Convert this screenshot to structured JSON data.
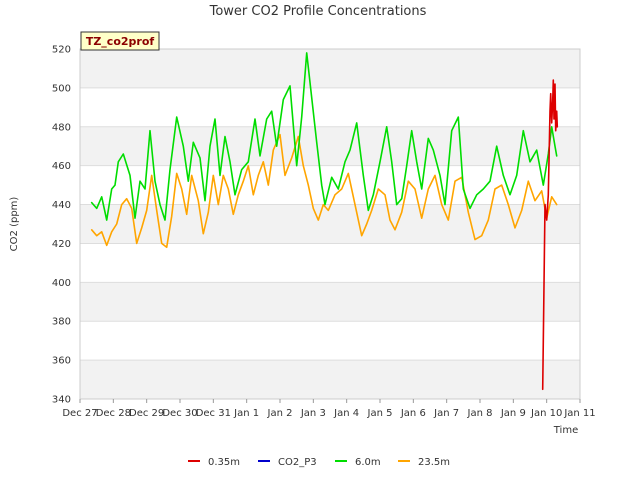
{
  "chart_data": {
    "type": "line",
    "title": "Tower CO2 Profile Concentrations",
    "xlabel": "Time",
    "ylabel": "CO2 (ppm)",
    "site_tag": "TZ_co2prof",
    "ylim": [
      340,
      520
    ],
    "yticks": [
      340,
      360,
      380,
      400,
      420,
      440,
      460,
      480,
      500,
      520
    ],
    "xlim": [
      0,
      15
    ],
    "xticks": [
      {
        "x": 0,
        "label": "Dec 27"
      },
      {
        "x": 1,
        "label": "Dec 28"
      },
      {
        "x": 2,
        "label": "Dec 29"
      },
      {
        "x": 3,
        "label": "Dec 30"
      },
      {
        "x": 4,
        "label": "Dec 31"
      },
      {
        "x": 5,
        "label": "Jan 1"
      },
      {
        "x": 6,
        "label": "Jan 2"
      },
      {
        "x": 7,
        "label": "Jan 3"
      },
      {
        "x": 8,
        "label": "Jan 4"
      },
      {
        "x": 9,
        "label": "Jan 5"
      },
      {
        "x": 10,
        "label": "Jan 6"
      },
      {
        "x": 11,
        "label": "Jan 7"
      },
      {
        "x": 12,
        "label": "Jan 8"
      },
      {
        "x": 13,
        "label": "Jan 9"
      },
      {
        "x": 14,
        "label": "Jan 10"
      },
      {
        "x": 15,
        "label": "Jan 11"
      }
    ],
    "series": [
      {
        "name": "0.35m",
        "color": "#dd0000",
        "x": [
          13.88,
          13.95,
          14.0,
          14.05,
          14.1,
          14.12,
          14.15,
          14.18,
          14.2,
          14.22,
          14.25,
          14.27,
          14.3,
          14.32
        ],
        "y": [
          345,
          440,
          432,
          445,
          488,
          497,
          482,
          493,
          504,
          484,
          502,
          478,
          488,
          480
        ]
      },
      {
        "name": "CO2_P3",
        "color": "#0000cc",
        "x": [],
        "y": []
      },
      {
        "name": "6.0m",
        "color": "#00dd00",
        "x": [
          0.35,
          0.5,
          0.65,
          0.8,
          0.95,
          1.05,
          1.15,
          1.3,
          1.5,
          1.65,
          1.8,
          1.95,
          2.1,
          2.25,
          2.4,
          2.55,
          2.7,
          2.9,
          3.1,
          3.25,
          3.4,
          3.6,
          3.75,
          3.9,
          4.05,
          4.2,
          4.35,
          4.5,
          4.65,
          4.85,
          5.05,
          5.25,
          5.4,
          5.6,
          5.75,
          5.9,
          6.1,
          6.3,
          6.5,
          6.65,
          6.8,
          6.95,
          7.1,
          7.25,
          7.35,
          7.55,
          7.75,
          7.95,
          8.1,
          8.3,
          8.5,
          8.65,
          8.8,
          9.0,
          9.2,
          9.35,
          9.5,
          9.65,
          9.8,
          9.95,
          10.1,
          10.25,
          10.45,
          10.6,
          10.8,
          10.95,
          11.15,
          11.35,
          11.5,
          11.7,
          11.9,
          12.1,
          12.3,
          12.5,
          12.7,
          12.9,
          13.1,
          13.3,
          13.5,
          13.7,
          13.9,
          14.05,
          14.15,
          14.25,
          14.3
        ],
        "y": [
          441,
          438,
          444,
          432,
          448,
          450,
          462,
          466,
          455,
          433,
          452,
          448,
          478,
          452,
          440,
          432,
          458,
          485,
          470,
          452,
          472,
          464,
          442,
          470,
          484,
          455,
          475,
          462,
          445,
          458,
          462,
          484,
          465,
          484,
          488,
          470,
          494,
          501,
          460,
          485,
          518,
          495,
          472,
          450,
          440,
          454,
          448,
          462,
          468,
          482,
          455,
          437,
          445,
          462,
          480,
          462,
          440,
          443,
          460,
          478,
          462,
          448,
          474,
          468,
          455,
          440,
          478,
          485,
          448,
          438,
          445,
          448,
          452,
          470,
          455,
          445,
          455,
          478,
          462,
          468,
          450,
          466,
          480,
          470,
          465
        ]
      },
      {
        "name": "23.5m",
        "color": "#ffa500",
        "x": [
          0.35,
          0.5,
          0.65,
          0.8,
          0.95,
          1.1,
          1.25,
          1.4,
          1.55,
          1.7,
          1.85,
          2.0,
          2.15,
          2.3,
          2.45,
          2.6,
          2.75,
          2.9,
          3.05,
          3.2,
          3.35,
          3.55,
          3.7,
          3.85,
          4.0,
          4.15,
          4.3,
          4.45,
          4.6,
          4.75,
          4.9,
          5.05,
          5.2,
          5.35,
          5.5,
          5.65,
          5.8,
          6.0,
          6.15,
          6.35,
          6.55,
          6.7,
          6.85,
          7.0,
          7.15,
          7.3,
          7.45,
          7.65,
          7.85,
          8.05,
          8.25,
          8.45,
          8.6,
          8.75,
          8.95,
          9.15,
          9.3,
          9.45,
          9.65,
          9.85,
          10.05,
          10.25,
          10.45,
          10.65,
          10.85,
          11.05,
          11.25,
          11.45,
          11.65,
          11.85,
          12.05,
          12.25,
          12.45,
          12.65,
          12.85,
          13.05,
          13.25,
          13.45,
          13.65,
          13.85,
          14.0,
          14.15,
          14.3
        ],
        "y": [
          427,
          424,
          426,
          419,
          426,
          430,
          440,
          443,
          438,
          420,
          428,
          437,
          455,
          437,
          420,
          418,
          434,
          456,
          448,
          435,
          455,
          442,
          425,
          436,
          455,
          440,
          455,
          448,
          435,
          445,
          452,
          460,
          445,
          455,
          462,
          450,
          468,
          476,
          455,
          464,
          475,
          460,
          450,
          438,
          432,
          440,
          437,
          445,
          448,
          456,
          440,
          424,
          430,
          437,
          448,
          445,
          432,
          427,
          436,
          452,
          448,
          433,
          448,
          455,
          440,
          432,
          452,
          454,
          436,
          422,
          424,
          432,
          448,
          450,
          440,
          428,
          437,
          452,
          442,
          447,
          433,
          444,
          440
        ]
      }
    ]
  }
}
